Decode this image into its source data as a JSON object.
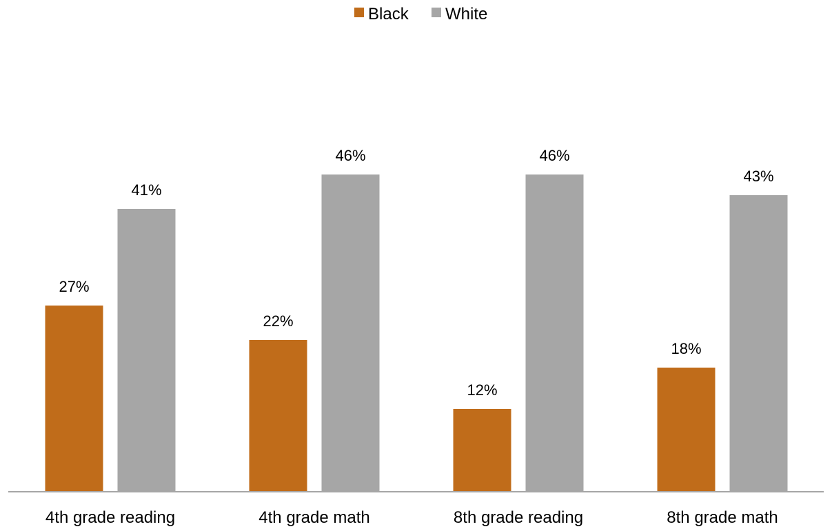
{
  "chart_data": {
    "type": "bar",
    "categories": [
      "4th grade reading",
      "4th grade math",
      "8th grade reading",
      "8th grade math"
    ],
    "series": [
      {
        "name": "Black",
        "color": "#c06c1a",
        "values": [
          27,
          22,
          12,
          18
        ],
        "labels": [
          "27%",
          "22%",
          "12%",
          "18%"
        ]
      },
      {
        "name": "White",
        "color": "#a6a6a6",
        "values": [
          41,
          46,
          46,
          43
        ],
        "labels": [
          "41%",
          "46%",
          "46%",
          "43%"
        ]
      }
    ],
    "ylim": [
      0,
      50
    ],
    "grid": false,
    "legend_position": "top-center",
    "axis_color": "#a6a6a6"
  }
}
